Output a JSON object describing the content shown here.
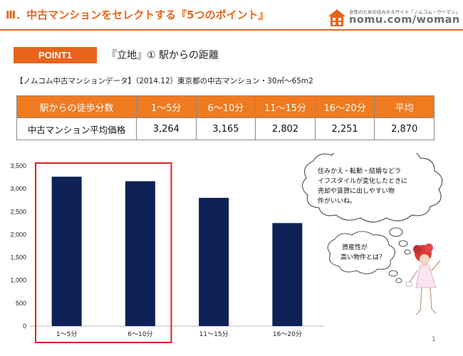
{
  "header": {
    "title": "Ⅲ．中古マンションをセレクトする『5つのポイント』",
    "logo_tagline": "女性のための住みかえサイト「ノムコム・ウーマン」",
    "logo_text": "nomu.com/woman",
    "accent_color": "#e8641c"
  },
  "point": {
    "badge": "POINT1",
    "heading": "『立地』①  駅からの距離"
  },
  "source_note": "【ノムコム中古マンションデータ】（2014.12）東京都の中古マンション・30㎡～65m2",
  "table": {
    "header_row_label": "駅からの徒歩分数",
    "columns": [
      "1～5分",
      "6～10分",
      "11～15分",
      "16～20分",
      "平均"
    ],
    "row_label": "中古マンション平均価格",
    "values": [
      "3,264",
      "3,165",
      "2,802",
      "2,251",
      "2,870"
    ]
  },
  "chart_data": {
    "type": "bar",
    "categories": [
      "1～5分",
      "6～10分",
      "11～15分",
      "16～20分"
    ],
    "values": [
      3264,
      3165,
      2802,
      2251
    ],
    "ylim": [
      0,
      3500
    ],
    "yticks": [
      0,
      500,
      1000,
      1500,
      2000,
      2500,
      3000,
      3500
    ],
    "ytick_labels": [
      "0",
      "500",
      "1,000",
      "1,500",
      "2,000",
      "2,500",
      "3,000",
      "3,500"
    ],
    "bar_color": "#0f2257",
    "highlight_color": "#e02020",
    "highlighted_categories": [
      "1～5分",
      "6～10分"
    ],
    "grid": false,
    "legend": "none"
  },
  "bubbles": {
    "large_lines": [
      "住みかえ・転勤・結婚などラ",
      "イフスタイルが変化したときに",
      "売却や賃貸に出しやすい物",
      "件がいいね。"
    ],
    "small_lines": [
      "資産性が",
      "高い物件とは？"
    ]
  },
  "page_number": "1"
}
